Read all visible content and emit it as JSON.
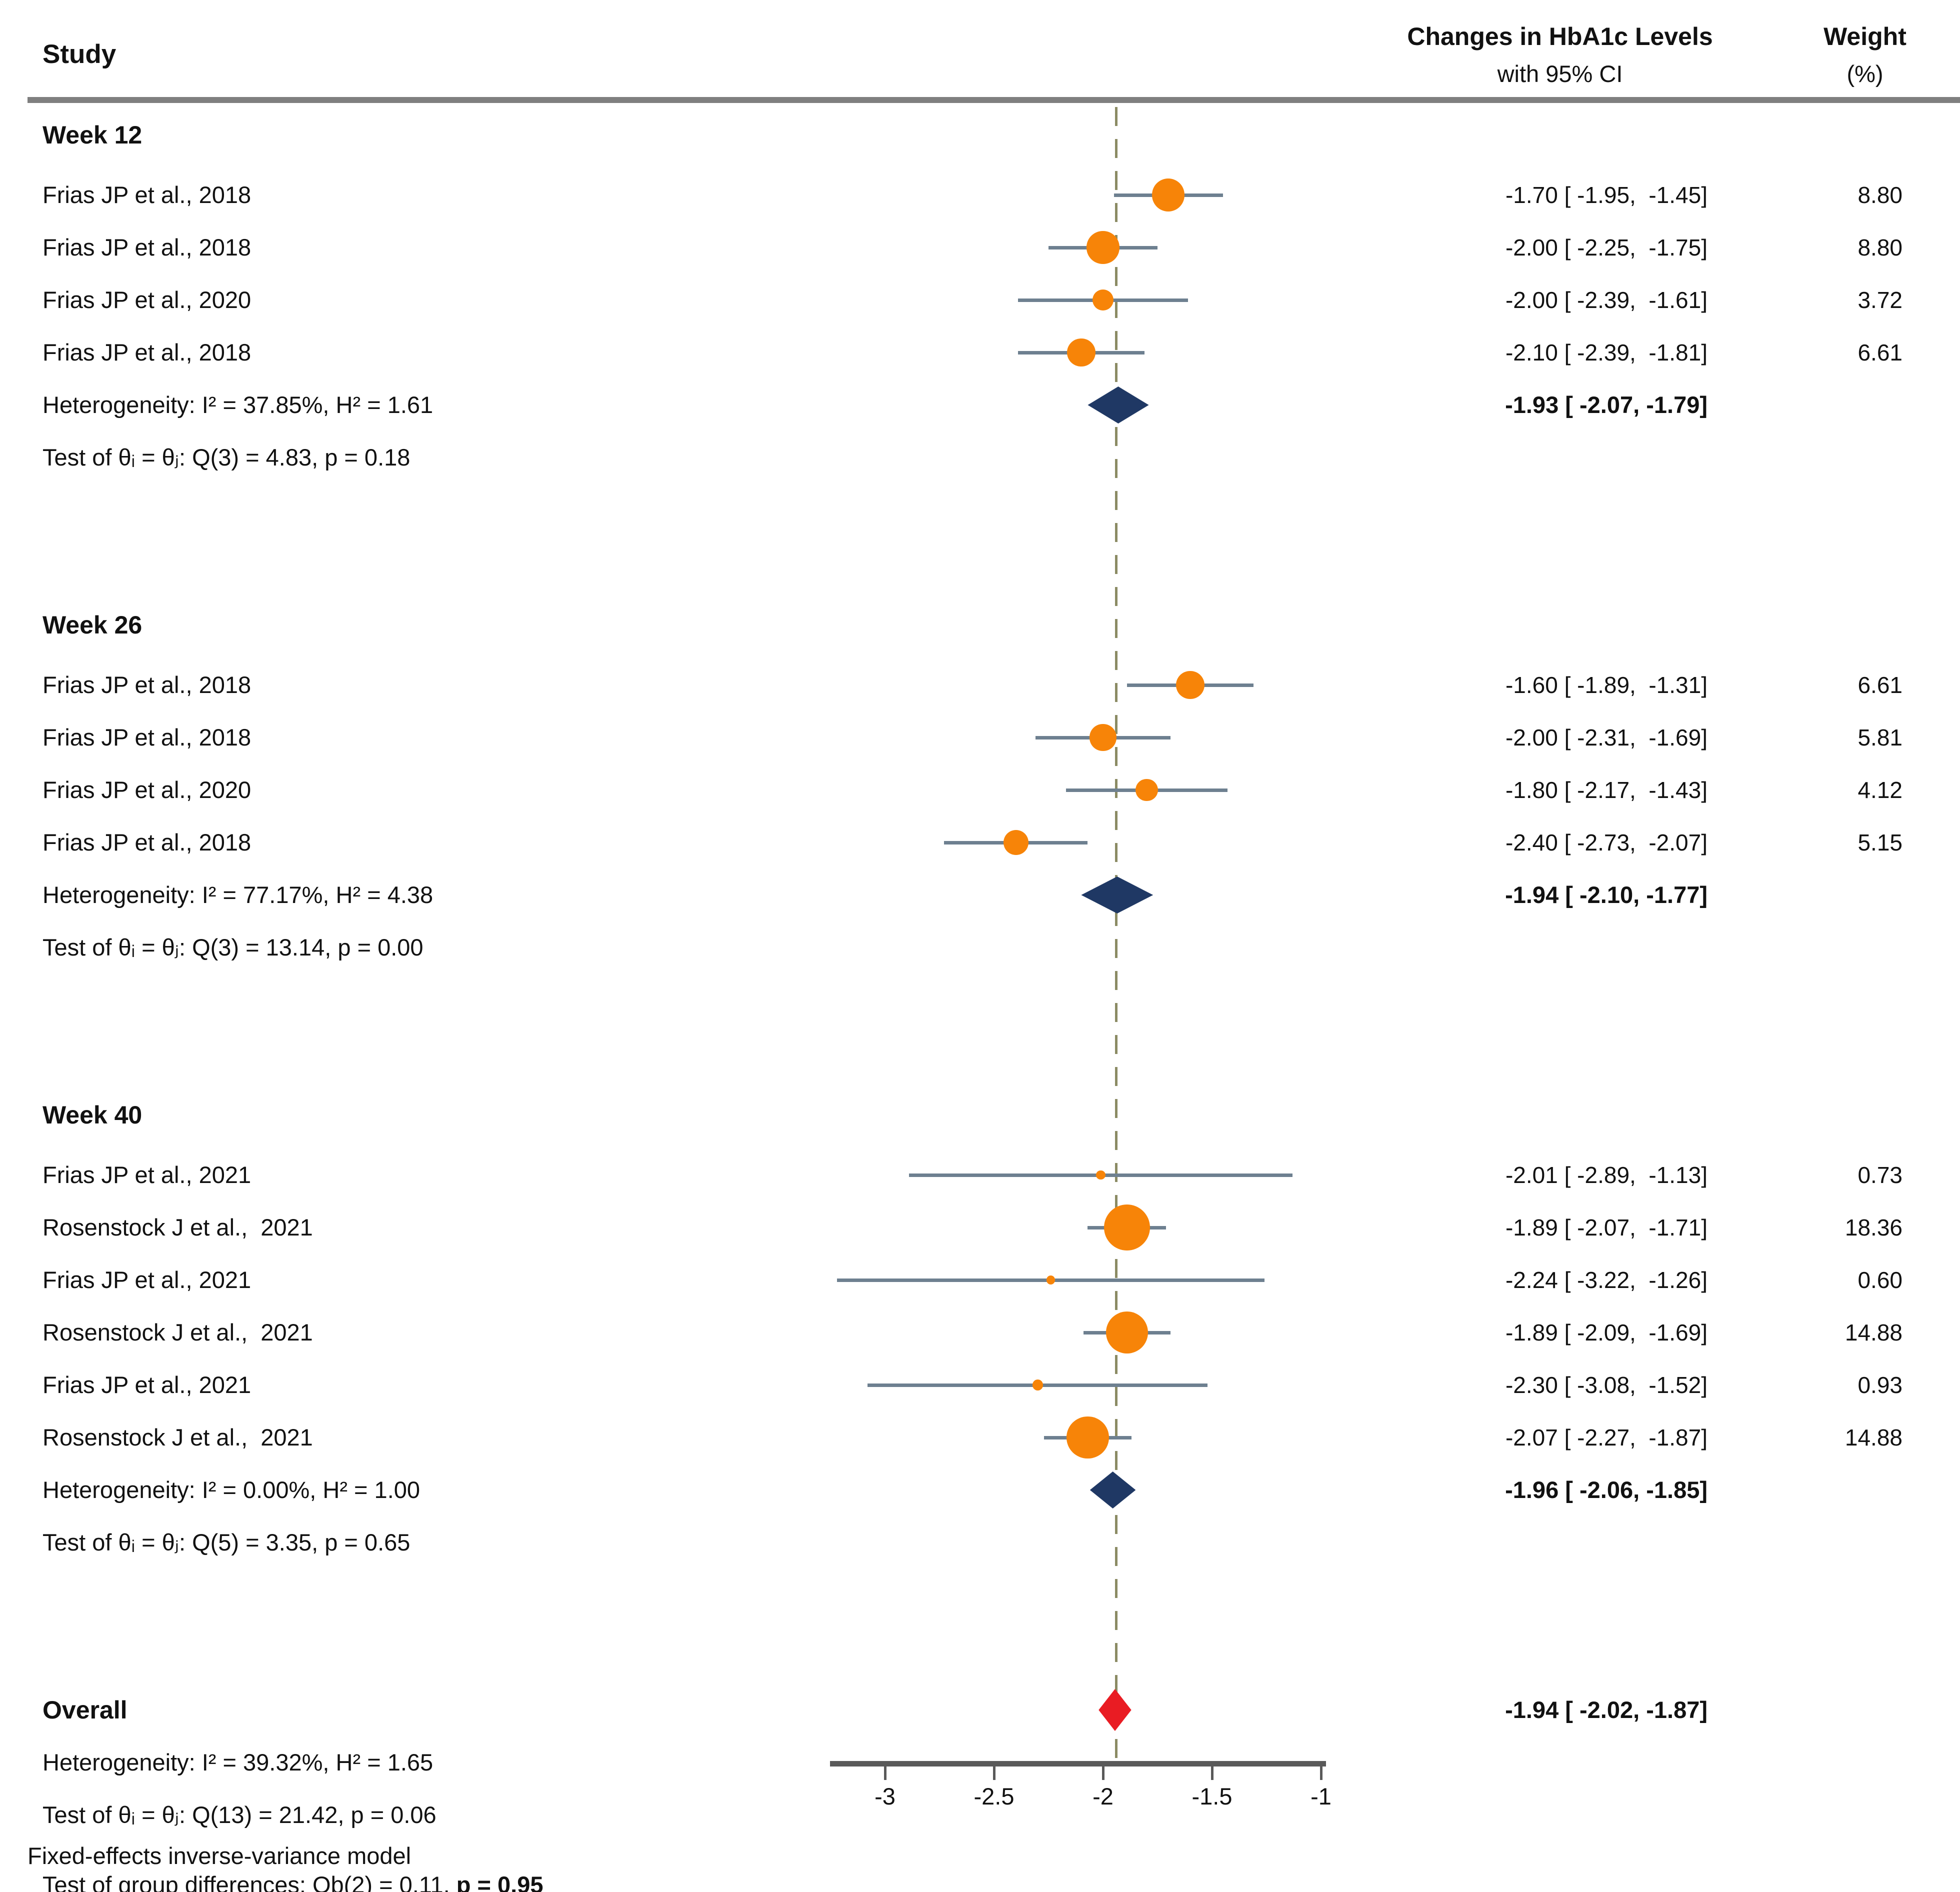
{
  "header": {
    "study_col": "Study",
    "effect_col_line1": "Changes in HbA1c Levels",
    "effect_col_line2": "with 95% CI",
    "weight_col_line1": "Weight",
    "weight_col_line2": "(%)"
  },
  "axis": {
    "ticks": [
      {
        "label": "-3",
        "value": -3
      },
      {
        "label": "-2.5",
        "value": -2.5
      },
      {
        "label": "-2",
        "value": -2
      },
      {
        "label": "-1.5",
        "value": -1.5
      },
      {
        "label": "-1",
        "value": -1
      }
    ],
    "range": [
      -3.25,
      -0.98
    ],
    "reference_value": -1.94,
    "grid": false
  },
  "footer": "Fixed-effects inverse-variance model",
  "colors": {
    "marker_orange": "#F78408",
    "summary_navy": "#1F3864",
    "overall_red": "#E91C23",
    "ci_line": "#6E8090",
    "reference_line": "#8B8B64",
    "axis": "#5A5A5A"
  },
  "chart_data": {
    "type": "forest",
    "title": "Changes in HbA1c Levels with 95% CI",
    "xlabel": "",
    "xlim": [
      -3.25,
      -0.98
    ],
    "legend_position": "none",
    "groups": [
      {
        "label": "Week 12",
        "studies": [
          {
            "label": "Frias JP et al., 2018",
            "est": -1.7,
            "lo": -1.95,
            "hi": -1.45,
            "weight": 8.8,
            "effect_text": "-1.70 [ -1.95,  -1.45]",
            "weight_text": "8.80"
          },
          {
            "label": "Frias JP et al., 2018",
            "est": -2.0,
            "lo": -2.25,
            "hi": -1.75,
            "weight": 8.8,
            "effect_text": "-2.00 [ -2.25,  -1.75]",
            "weight_text": "8.80"
          },
          {
            "label": "Frias JP et al., 2020",
            "est": -2.0,
            "lo": -2.39,
            "hi": -1.61,
            "weight": 3.72,
            "effect_text": "-2.00 [ -2.39,  -1.61]",
            "weight_text": "3.72"
          },
          {
            "label": "Frias JP et al., 2018",
            "est": -2.1,
            "lo": -2.39,
            "hi": -1.81,
            "weight": 6.61,
            "effect_text": "-2.10 [ -2.39,  -1.81]",
            "weight_text": "6.61"
          }
        ],
        "summary": {
          "heterogeneity": "Heterogeneity: I² = 37.85%, H² = 1.61",
          "test": "Test of θᵢ = θⱼ: Q(3) = 4.83, p = 0.18",
          "est": -1.93,
          "lo": -2.07,
          "hi": -1.79,
          "effect_text": "-1.93 [ -2.07, -1.79]"
        }
      },
      {
        "label": "Week 26",
        "studies": [
          {
            "label": "Frias JP et al., 2018",
            "est": -1.6,
            "lo": -1.89,
            "hi": -1.31,
            "weight": 6.61,
            "effect_text": "-1.60 [ -1.89,  -1.31]",
            "weight_text": "6.61"
          },
          {
            "label": "Frias JP et al., 2018",
            "est": -2.0,
            "lo": -2.31,
            "hi": -1.69,
            "weight": 5.81,
            "effect_text": "-2.00 [ -2.31,  -1.69]",
            "weight_text": "5.81"
          },
          {
            "label": "Frias JP et al., 2020",
            "est": -1.8,
            "lo": -2.17,
            "hi": -1.43,
            "weight": 4.12,
            "effect_text": "-1.80 [ -2.17,  -1.43]",
            "weight_text": "4.12"
          },
          {
            "label": "Frias JP et al., 2018",
            "est": -2.4,
            "lo": -2.73,
            "hi": -2.07,
            "weight": 5.15,
            "effect_text": "-2.40 [ -2.73,  -2.07]",
            "weight_text": "5.15"
          }
        ],
        "summary": {
          "heterogeneity": "Heterogeneity: I² = 77.17%, H² = 4.38",
          "test": "Test of θᵢ = θⱼ: Q(3) = 13.14, p = 0.00",
          "est": -1.94,
          "lo": -2.1,
          "hi": -1.77,
          "effect_text": "-1.94 [ -2.10, -1.77]"
        }
      },
      {
        "label": "Week 40",
        "studies": [
          {
            "label": "Frias JP et al., 2021",
            "est": -2.01,
            "lo": -2.89,
            "hi": -1.13,
            "weight": 0.73,
            "effect_text": "-2.01 [ -2.89,  -1.13]",
            "weight_text": "0.73"
          },
          {
            "label": "Rosenstock J et al.,  2021",
            "est": -1.89,
            "lo": -2.07,
            "hi": -1.71,
            "weight": 18.36,
            "effect_text": "-1.89 [ -2.07,  -1.71]",
            "weight_text": "18.36"
          },
          {
            "label": "Frias JP et al., 2021",
            "est": -2.24,
            "lo": -3.22,
            "hi": -1.26,
            "weight": 0.6,
            "effect_text": "-2.24 [ -3.22,  -1.26]",
            "weight_text": "0.60"
          },
          {
            "label": "Rosenstock J et al.,  2021",
            "est": -1.89,
            "lo": -2.09,
            "hi": -1.69,
            "weight": 14.88,
            "effect_text": "-1.89 [ -2.09,  -1.69]",
            "weight_text": "14.88"
          },
          {
            "label": "Frias JP et al., 2021",
            "est": -2.3,
            "lo": -3.08,
            "hi": -1.52,
            "weight": 0.93,
            "effect_text": "-2.30 [ -3.08,  -1.52]",
            "weight_text": "0.93"
          },
          {
            "label": "Rosenstock J et al.,  2021",
            "est": -2.07,
            "lo": -2.27,
            "hi": -1.87,
            "weight": 14.88,
            "effect_text": "-2.07 [ -2.27,  -1.87]",
            "weight_text": "14.88"
          }
        ],
        "summary": {
          "heterogeneity": "Heterogeneity: I² = 0.00%, H² = 1.00",
          "test": "Test of θᵢ = θⱼ: Q(5) = 3.35, p = 0.65",
          "est": -1.96,
          "lo": -2.06,
          "hi": -1.85,
          "effect_text": "-1.96 [ -2.06, -1.85]"
        }
      }
    ],
    "overall": {
      "label": "Overall",
      "est": -1.94,
      "lo": -2.02,
      "hi": -1.87,
      "effect_text": "-1.94 [ -2.02, -1.87]",
      "heterogeneity": "Heterogeneity: I² = 39.32%, H² = 1.65",
      "test": "Test of θᵢ = θⱼ: Q(13) = 21.42, p = 0.06",
      "group_diff_normal": "Test of group differences: Qb(2) = 0.11, ",
      "group_diff_bold": "p = 0.95"
    }
  }
}
